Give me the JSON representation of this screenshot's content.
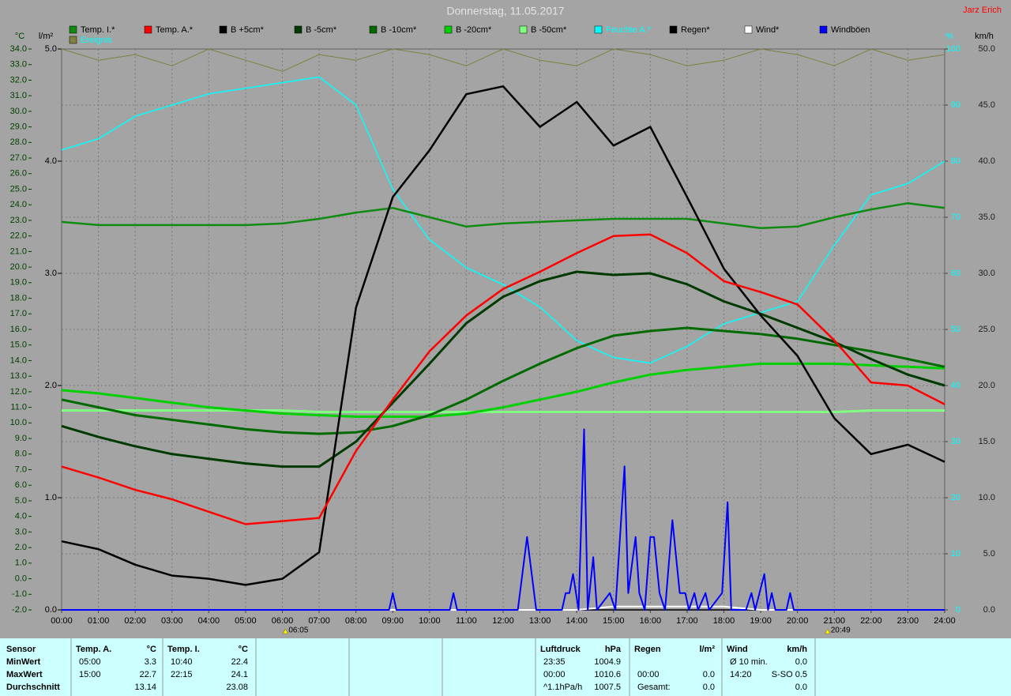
{
  "chart_data": {
    "type": "line",
    "title": "Donnerstag, 11.05.2017",
    "author": "Jarz Erich",
    "ylabel": "°C",
    "y2label": "l/m²",
    "y3label": "%",
    "y4label": "km/h",
    "xlim": [
      0,
      24
    ],
    "xticks": [
      {
        "value": 0,
        "label": "00:00"
      },
      {
        "value": 1,
        "label": "01:00"
      },
      {
        "value": 2,
        "label": "02:00"
      },
      {
        "value": 3,
        "label": "03:00"
      },
      {
        "value": 4,
        "label": "04:00"
      },
      {
        "value": 5,
        "label": "05:00"
      },
      {
        "value": 6,
        "label": "06:00"
      },
      {
        "value": 7,
        "label": "07:00"
      },
      {
        "value": 8,
        "label": "08:00"
      },
      {
        "value": 9,
        "label": "09:00"
      },
      {
        "value": 10,
        "label": "10:00"
      },
      {
        "value": 11,
        "label": "11:00"
      },
      {
        "value": 12,
        "label": "12:00"
      },
      {
        "value": 13,
        "label": "13:00"
      },
      {
        "value": 14,
        "label": "14:00"
      },
      {
        "value": 15,
        "label": "15:00"
      },
      {
        "value": 16,
        "label": "16:00"
      },
      {
        "value": 17,
        "label": "17:00"
      },
      {
        "value": 18,
        "label": "18:00"
      },
      {
        "value": 19,
        "label": "19:00"
      },
      {
        "value": 20,
        "label": "20:00"
      },
      {
        "value": 21,
        "label": "21:00"
      },
      {
        "value": 22,
        "label": "22:00"
      },
      {
        "value": 23,
        "label": "23:00"
      },
      {
        "value": 24,
        "label": "24:00"
      }
    ],
    "ylim": [
      -2,
      34
    ],
    "yticks": [
      {
        "value": -2,
        "label": "-2.0"
      },
      {
        "value": -1,
        "label": "-1.0"
      },
      {
        "value": 0,
        "label": "0.0"
      },
      {
        "value": 1,
        "label": "1.0"
      },
      {
        "value": 2,
        "label": "2.0"
      },
      {
        "value": 3,
        "label": "3.0"
      },
      {
        "value": 4,
        "label": "4.0"
      },
      {
        "value": 5,
        "label": "5.0"
      },
      {
        "value": 6,
        "label": "6.0"
      },
      {
        "value": 7,
        "label": "7.0"
      },
      {
        "value": 8,
        "label": "8.0"
      },
      {
        "value": 9,
        "label": "9.0"
      },
      {
        "value": 10,
        "label": "10.0"
      },
      {
        "value": 11,
        "label": "11.0"
      },
      {
        "value": 12,
        "label": "12.0"
      },
      {
        "value": 13,
        "label": "13.0"
      },
      {
        "value": 14,
        "label": "14.0"
      },
      {
        "value": 15,
        "label": "15.0"
      },
      {
        "value": 16,
        "label": "16.0"
      },
      {
        "value": 17,
        "label": "17.0"
      },
      {
        "value": 18,
        "label": "18.0"
      },
      {
        "value": 19,
        "label": "19.0"
      },
      {
        "value": 20,
        "label": "20.0"
      },
      {
        "value": 21,
        "label": "21.0"
      },
      {
        "value": 22,
        "label": "22.0"
      },
      {
        "value": 23,
        "label": "23.0"
      },
      {
        "value": 24,
        "label": "24.0"
      },
      {
        "value": 25,
        "label": "25.0"
      },
      {
        "value": 26,
        "label": "26.0"
      },
      {
        "value": 27,
        "label": "27.0"
      },
      {
        "value": 28,
        "label": "28.0"
      },
      {
        "value": 29,
        "label": "29.0"
      },
      {
        "value": 30,
        "label": "30.0"
      },
      {
        "value": 31,
        "label": "31.0"
      },
      {
        "value": 32,
        "label": "32.0"
      },
      {
        "value": 33,
        "label": "33.0"
      },
      {
        "value": 34,
        "label": "34.0"
      }
    ],
    "y2lim": [
      0,
      5
    ],
    "y2ticks": [
      {
        "value": 0,
        "label": "0.0"
      },
      {
        "value": 1,
        "label": "1.0"
      },
      {
        "value": 2,
        "label": "2.0"
      },
      {
        "value": 3,
        "label": "3.0"
      },
      {
        "value": 4,
        "label": "4.0"
      },
      {
        "value": 5,
        "label": "5.0"
      }
    ],
    "y3lim": [
      0,
      100
    ],
    "y3ticks": [
      0,
      10,
      20,
      30,
      40,
      50,
      60,
      70,
      80,
      90,
      100
    ],
    "y4lim": [
      0,
      50
    ],
    "y4ticks": [
      {
        "value": 0,
        "label": "0.0"
      },
      {
        "value": 5,
        "label": "5.0"
      },
      {
        "value": 10,
        "label": "10.0"
      },
      {
        "value": 15,
        "label": "15.0"
      },
      {
        "value": 20,
        "label": "20.0"
      },
      {
        "value": 25,
        "label": "25.0"
      },
      {
        "value": 30,
        "label": "30.0"
      },
      {
        "value": 35,
        "label": "35.0"
      },
      {
        "value": 40,
        "label": "40.0"
      },
      {
        "value": 45,
        "label": "45.0"
      },
      {
        "value": 50,
        "label": "50.0"
      }
    ],
    "grid": true,
    "x": [
      0,
      1,
      2,
      3,
      4,
      5,
      6,
      7,
      8,
      9,
      10,
      11,
      12,
      13,
      14,
      15,
      16,
      17,
      18,
      19,
      20,
      21,
      22,
      23,
      24
    ],
    "series": [
      {
        "name": "Temp. I.*",
        "color": "#108a10",
        "axis": "y",
        "values": [
          22.9,
          22.7,
          22.7,
          22.7,
          22.7,
          22.7,
          22.8,
          23.1,
          23.5,
          23.8,
          23.2,
          22.6,
          22.8,
          22.9,
          23.0,
          23.1,
          23.1,
          23.1,
          22.8,
          22.5,
          22.6,
          23.2,
          23.7,
          24.1,
          23.8
        ]
      },
      {
        "name": "Temp. A.*",
        "color": "#ff0000",
        "axis": "y",
        "values": [
          7.2,
          6.5,
          5.7,
          5.1,
          4.3,
          3.5,
          3.7,
          3.9,
          8.2,
          11.5,
          14.6,
          16.9,
          18.6,
          19.7,
          20.9,
          22.0,
          22.1,
          20.9,
          19.1,
          18.4,
          17.6,
          15.3,
          12.6,
          12.4,
          11.2
        ]
      },
      {
        "name": "B +5cm*",
        "color": "#000000",
        "axis": "y",
        "values": [
          2.4,
          1.9,
          0.9,
          0.2,
          0.0,
          -0.4,
          0.0,
          1.7,
          17.4,
          24.5,
          27.5,
          31.1,
          31.6,
          29.0,
          30.6,
          27.8,
          29.0,
          24.5,
          19.9,
          16.9,
          14.3,
          10.3,
          8.0,
          8.6,
          7.5
        ]
      },
      {
        "name": "B -5cm*",
        "color": "#003a00",
        "axis": "y",
        "values": [
          9.8,
          9.1,
          8.5,
          8.0,
          7.7,
          7.4,
          7.2,
          7.2,
          8.8,
          11.3,
          13.8,
          16.4,
          18.1,
          19.1,
          19.7,
          19.5,
          19.6,
          18.9,
          17.8,
          17.0,
          16.1,
          15.2,
          14.1,
          13.1,
          12.4
        ]
      },
      {
        "name": "B -10cm*",
        "color": "#006a00",
        "axis": "y",
        "values": [
          11.5,
          11.0,
          10.5,
          10.2,
          9.9,
          9.6,
          9.4,
          9.3,
          9.4,
          9.8,
          10.5,
          11.5,
          12.7,
          13.8,
          14.8,
          15.6,
          15.9,
          16.1,
          15.9,
          15.7,
          15.4,
          15.0,
          14.6,
          14.1,
          13.6
        ]
      },
      {
        "name": "B -20cm*",
        "color": "#00d000",
        "axis": "y",
        "values": [
          12.1,
          11.9,
          11.6,
          11.3,
          11.0,
          10.8,
          10.6,
          10.5,
          10.4,
          10.4,
          10.4,
          10.6,
          11.0,
          11.5,
          12.0,
          12.6,
          13.1,
          13.4,
          13.6,
          13.8,
          13.8,
          13.8,
          13.7,
          13.6,
          13.5
        ]
      },
      {
        "name": "B -50cm*",
        "color": "#80ff80",
        "axis": "y",
        "values": [
          10.8,
          10.8,
          10.8,
          10.8,
          10.8,
          10.8,
          10.8,
          10.7,
          10.7,
          10.7,
          10.7,
          10.7,
          10.7,
          10.7,
          10.7,
          10.7,
          10.7,
          10.7,
          10.7,
          10.7,
          10.7,
          10.7,
          10.8,
          10.8,
          10.8
        ]
      },
      {
        "name": "Feuchte A.*",
        "color": "#00ffff",
        "axis": "y3",
        "values": [
          82,
          84,
          88,
          90,
          92,
          93,
          94,
          95,
          90,
          75,
          66,
          61,
          58,
          54,
          48,
          45,
          44,
          47,
          51,
          53,
          55,
          65,
          74,
          76,
          80
        ]
      },
      {
        "name": "Regen*",
        "color": "#000000",
        "axis": "y2",
        "values": [
          0,
          0,
          0,
          0,
          0,
          0,
          0,
          0,
          0,
          0,
          0,
          0,
          0,
          0,
          0,
          0,
          0,
          0,
          0,
          0,
          0,
          0,
          0,
          0,
          0
        ]
      },
      {
        "name": "Wind*",
        "color": "#ffffff",
        "axis": "y4",
        "values": [
          0,
          0,
          0,
          0,
          0,
          0,
          0,
          0,
          0,
          0,
          0,
          0,
          0,
          0,
          0,
          0.3,
          0.3,
          0.3,
          0.3,
          0,
          0,
          0,
          0,
          0,
          0
        ]
      },
      {
        "name": "Windböen",
        "color": "#0000ff",
        "axis": "y4",
        "x": [
          0,
          8.9,
          9.0,
          9.1,
          10.55,
          10.65,
          10.75,
          12.4,
          12.65,
          12.9,
          13.6,
          13.7,
          13.8,
          13.9,
          14.05,
          14.2,
          14.3,
          14.45,
          14.55,
          14.9,
          15.05,
          15.3,
          15.4,
          15.5,
          15.6,
          15.7,
          15.85,
          16.0,
          16.1,
          16.25,
          16.4,
          16.6,
          16.8,
          16.95,
          17.05,
          17.2,
          17.3,
          17.5,
          17.6,
          17.95,
          18.1,
          18.2,
          18.3,
          18.6,
          18.75,
          18.85,
          19.1,
          19.2,
          19.3,
          19.4,
          19.7,
          19.8,
          19.9,
          24
        ],
        "values": [
          0,
          0,
          1.5,
          0,
          0,
          1.5,
          0,
          0,
          6.5,
          0,
          0,
          1.5,
          1.5,
          3.2,
          0,
          16.1,
          0,
          4.7,
          0,
          1.5,
          0,
          12.8,
          1.5,
          4.0,
          6.5,
          1.5,
          0,
          6.5,
          6.5,
          1.5,
          0,
          8.0,
          1.5,
          1.5,
          0,
          1.5,
          0,
          1.5,
          0,
          1.5,
          9.6,
          0,
          0,
          0,
          1.5,
          0,
          3.2,
          0,
          1.5,
          0,
          0,
          1.5,
          0,
          0
        ]
      },
      {
        "name": "Ereignis",
        "color": "#808040",
        "axis": "y3",
        "values": [
          100,
          98,
          99,
          97,
          100,
          98,
          96,
          99,
          98,
          100,
          99,
          97,
          100,
          98,
          97,
          100,
          99,
          97,
          98,
          100,
          99,
          97,
          100,
          98,
          99
        ]
      }
    ],
    "annotations": [
      {
        "x": 6.083,
        "label": "06:05"
      },
      {
        "x": 20.817,
        "label": "20:49"
      }
    ]
  },
  "table": {
    "row_labels": [
      "Sensor",
      "MinWert",
      "MaxWert",
      "Durchschnitt"
    ],
    "groups": [
      {
        "header": [
          "Temp. A.",
          "°C"
        ],
        "rows": [
          [
            "05:00",
            "3.3"
          ],
          [
            "15:00",
            "22.7"
          ],
          [
            null,
            "13.14"
          ]
        ]
      },
      {
        "header": [
          "Temp. I.",
          "°C"
        ],
        "rows": [
          [
            "10:40",
            "22.4"
          ],
          [
            "22:15",
            "24.1"
          ],
          [
            null,
            "23.08"
          ]
        ]
      },
      {
        "header": [
          "Luftdruck",
          "hPa"
        ],
        "rows": [
          [
            "23:35",
            "1004.9"
          ],
          [
            "00:00",
            "1010.6"
          ],
          [
            "^1.1hPa/h",
            "1007.5"
          ]
        ]
      },
      {
        "header": [
          "Regen",
          "l/m²"
        ],
        "rows": [
          [
            null,
            null
          ],
          [
            "00:00",
            "0.0"
          ],
          [
            "Gesamt:",
            "0.0"
          ]
        ]
      },
      {
        "header": [
          "Wind",
          "km/h"
        ],
        "rows": [
          [
            "Ø 10 min.",
            "0.0"
          ],
          [
            "14:20",
            "S-SO 0.5"
          ],
          [
            null,
            "0.0"
          ]
        ]
      }
    ]
  }
}
